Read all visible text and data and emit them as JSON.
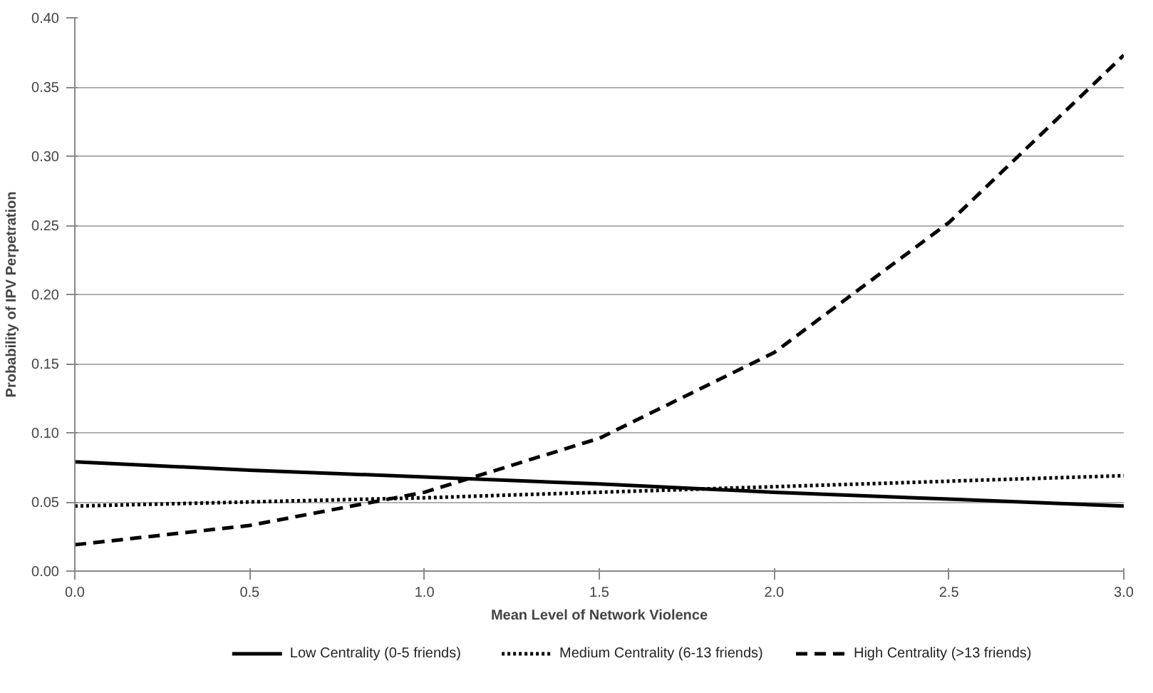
{
  "chart_data": {
    "type": "line",
    "xlabel": "Mean Level of Network Violence",
    "ylabel": "Probability of IPV Perpetration",
    "x": [
      0,
      0.5,
      1,
      1.5,
      2,
      2.5,
      3
    ],
    "xlim": [
      0,
      3
    ],
    "ylim": [
      0,
      0.4
    ],
    "xticks": [
      {
        "value": 0,
        "label": "0.0"
      },
      {
        "value": 0.5,
        "label": "0.5"
      },
      {
        "value": 1,
        "label": "1.0"
      },
      {
        "value": 1.5,
        "label": "1.5"
      },
      {
        "value": 2,
        "label": "2.0"
      },
      {
        "value": 2.5,
        "label": "2.5"
      },
      {
        "value": 3,
        "label": "3.0"
      }
    ],
    "yticks": [
      {
        "value": 0,
        "label": "0.00"
      },
      {
        "value": 0.05,
        "label": "0.05"
      },
      {
        "value": 0.1,
        "label": "0.10"
      },
      {
        "value": 0.15,
        "label": "0.15"
      },
      {
        "value": 0.2,
        "label": "0.20"
      },
      {
        "value": 0.25,
        "label": "0.25"
      },
      {
        "value": 0.3,
        "label": "0.30"
      },
      {
        "value": 0.35,
        "label": "0.35"
      },
      {
        "value": 0.4,
        "label": "0.40"
      }
    ],
    "grid": "y",
    "legend": "bottom",
    "series": [
      {
        "name": "Low Centrality (0-5 friends)",
        "color": "#000000",
        "line_style": "solid",
        "values": [
          0.079,
          0.073,
          0.068,
          0.063,
          0.057,
          0.052,
          0.047
        ]
      },
      {
        "name": "Medium Centrality (6-13 friends)",
        "color": "#000000",
        "line_style": "dotted",
        "values": [
          0.047,
          0.05,
          0.053,
          0.057,
          0.061,
          0.065,
          0.069
        ]
      },
      {
        "name": "High Centrality (>13 friends)",
        "color": "#000000",
        "line_style": "dashed",
        "values": [
          0.019,
          0.033,
          0.057,
          0.096,
          0.158,
          0.252,
          0.373
        ]
      }
    ]
  }
}
